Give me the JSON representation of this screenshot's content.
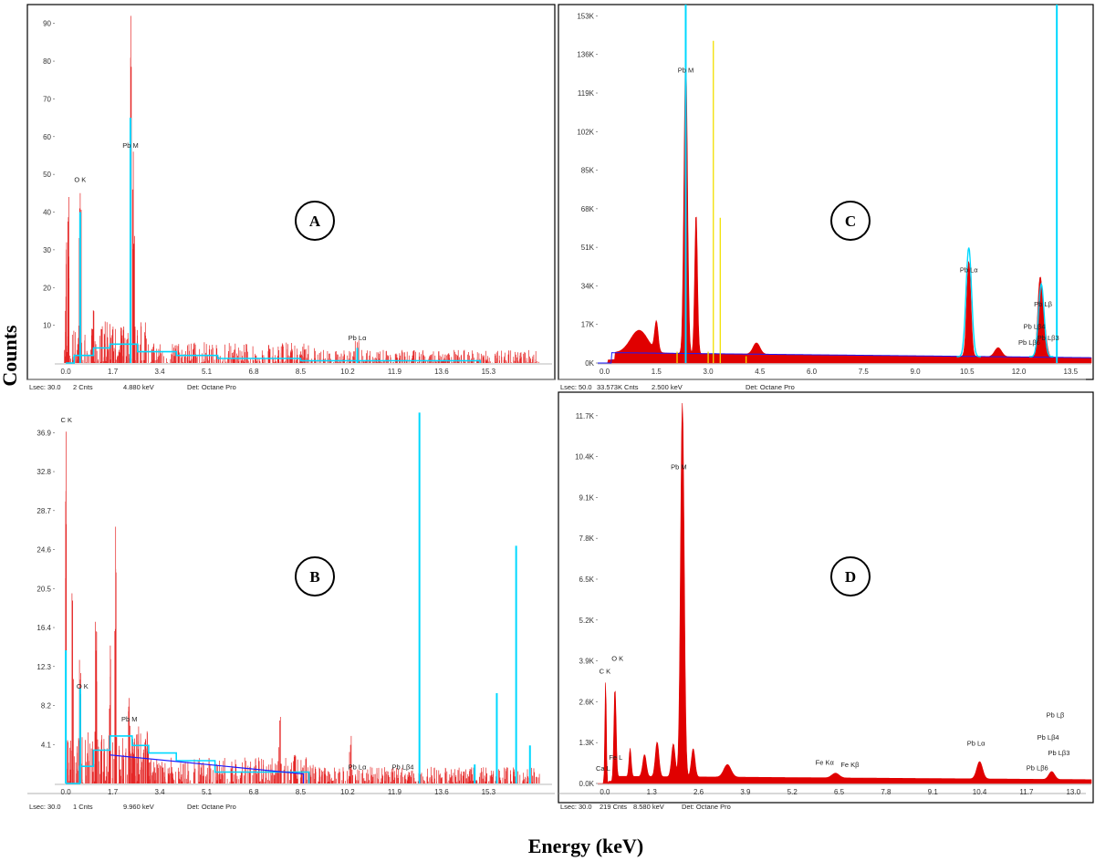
{
  "labels": {
    "y_axis": "Counts",
    "x_axis": "Energy (keV)"
  },
  "colors": {
    "spectrum": "#e00000",
    "overlay": "#00d8ff",
    "background": "#1a1aff",
    "marker": "#f2e000"
  },
  "chart_data": [
    {
      "id": "A",
      "type": "area",
      "xlabel": "",
      "ylabel": "",
      "xlim": [
        -0.4,
        17.6
      ],
      "ylim": [
        0,
        95
      ],
      "x_ticks": [
        "0.0",
        "1.7",
        "3.4",
        "5.1",
        "6.8",
        "8.5",
        "10.2",
        "11.9",
        "13.6",
        "15.3"
      ],
      "x_tick_values": [
        0,
        1.7,
        3.4,
        5.1,
        6.8,
        8.5,
        10.2,
        11.9,
        13.6,
        15.3
      ],
      "y_ticks": [
        "10",
        "20",
        "30",
        "40",
        "50",
        "60",
        "70",
        "80",
        "90"
      ],
      "y_tick_values": [
        10,
        20,
        30,
        40,
        50,
        60,
        70,
        80,
        90
      ],
      "peaks": [
        {
          "x": 0.0,
          "y": 32,
          "w": 0.03
        },
        {
          "x": 0.1,
          "y": 44,
          "w": 0.04
        },
        {
          "x": 0.52,
          "y": 45,
          "w": 0.04
        },
        {
          "x": 1.0,
          "y": 14,
          "w": 0.03
        },
        {
          "x": 1.4,
          "y": 11,
          "w": 0.03
        },
        {
          "x": 2.34,
          "y": 92,
          "w": 0.035
        },
        {
          "x": 2.45,
          "y": 56,
          "w": 0.04
        },
        {
          "x": 10.55,
          "y": 6,
          "w": 0.08
        },
        {
          "x": 12.6,
          "y": 3,
          "w": 0.08
        }
      ],
      "noise_level": 5,
      "overlay_peaks": [
        {
          "x": 0.52,
          "y": 40
        },
        {
          "x": 2.34,
          "y": 65
        },
        {
          "x": 10.55,
          "y": 4
        }
      ],
      "annotations": [
        {
          "text": "O  K",
          "x": 0.52,
          "y": 48
        },
        {
          "text": "Pb M",
          "x": 2.34,
          "y": 57
        },
        {
          "text": "Pb Lα",
          "x": 10.55,
          "y": 6
        }
      ],
      "status": {
        "lsec": "Lsec: 30.0",
        "cnts": "2 Cnts",
        "kev": "4.880 keV",
        "det": "Det: Octane Pro"
      }
    },
    {
      "id": "B",
      "type": "area",
      "xlabel": "",
      "ylabel": "",
      "xlim": [
        -0.4,
        17.6
      ],
      "ylim": [
        0,
        40
      ],
      "x_ticks": [
        "0.0",
        "1.7",
        "3.4",
        "5.1",
        "6.8",
        "8.5",
        "10.2",
        "11.9",
        "13.6",
        "15.3"
      ],
      "x_tick_values": [
        0,
        1.7,
        3.4,
        5.1,
        6.8,
        8.5,
        10.2,
        11.9,
        13.6,
        15.3
      ],
      "y_ticks": [
        "4.1",
        "8.2",
        "12.3",
        "16.4",
        "20.5",
        "24.6",
        "28.7",
        "32.8",
        "36.9"
      ],
      "y_tick_values": [
        4.1,
        8.2,
        12.3,
        16.4,
        20.5,
        24.6,
        28.7,
        32.8,
        36.9
      ],
      "peaks": [
        {
          "x": 0.02,
          "y": 37,
          "w": 0.03
        },
        {
          "x": 0.25,
          "y": 20,
          "w": 0.03
        },
        {
          "x": 0.52,
          "y": 13,
          "w": 0.03
        },
        {
          "x": 1.1,
          "y": 17,
          "w": 0.03
        },
        {
          "x": 1.6,
          "y": 14.5,
          "w": 0.04
        },
        {
          "x": 1.8,
          "y": 27,
          "w": 0.03
        },
        {
          "x": 2.3,
          "y": 9,
          "w": 0.04
        },
        {
          "x": 2.6,
          "y": 6,
          "w": 0.04
        },
        {
          "x": 7.75,
          "y": 7,
          "w": 0.04
        },
        {
          "x": 8.3,
          "y": 3,
          "w": 0.04
        },
        {
          "x": 10.3,
          "y": 5,
          "w": 0.04
        }
      ],
      "noise_level": 2.5,
      "overlay_peaks": [
        {
          "x": 0.0,
          "y": 14
        },
        {
          "x": 0.52,
          "y": 10
        },
        {
          "x": 12.8,
          "y": 39
        },
        {
          "x": 15.6,
          "y": 9.5
        },
        {
          "x": 16.3,
          "y": 25
        },
        {
          "x": 16.8,
          "y": 4
        },
        {
          "x": 14.8,
          "y": 2
        }
      ],
      "annotations": [
        {
          "text": "C  K",
          "x": 0.02,
          "y": 38
        },
        {
          "text": "O  K",
          "x": 0.6,
          "y": 10
        },
        {
          "text": "Pb M",
          "x": 2.3,
          "y": 6.5
        },
        {
          "text": "Pb Lα",
          "x": 10.55,
          "y": 1.5
        },
        {
          "text": "Pb Lβ4",
          "x": 12.2,
          "y": 1.5
        }
      ],
      "status": {
        "lsec": "Lsec: 30.0",
        "cnts": "1 Cnts",
        "kev": "9.960 keV",
        "det": "Det: Octane Pro"
      }
    },
    {
      "id": "C",
      "type": "area",
      "xlabel": "",
      "ylabel": "",
      "xlim": [
        -0.2,
        14.1
      ],
      "ylim": [
        0,
        158000
      ],
      "x_ticks": [
        "0.0",
        "1.5",
        "3.0",
        "4.5",
        "6.0",
        "7.5",
        "9.0",
        "10.5",
        "12.0",
        "13.5"
      ],
      "x_tick_values": [
        0,
        1.5,
        3,
        4.5,
        6,
        7.5,
        9,
        10.5,
        12,
        13.5
      ],
      "y_ticks": [
        "0K",
        "17K",
        "34K",
        "51K",
        "68K",
        "85K",
        "102K",
        "119K",
        "136K",
        "153K"
      ],
      "y_tick_values": [
        0,
        17000,
        34000,
        51000,
        68000,
        85000,
        102000,
        119000,
        136000,
        153000
      ],
      "peaks": [
        {
          "x": 1.0,
          "y": 10000,
          "w": 0.25
        },
        {
          "x": 1.5,
          "y": 13000,
          "w": 0.05
        },
        {
          "x": 2.35,
          "y": 132000,
          "w": 0.05
        },
        {
          "x": 2.65,
          "y": 62000,
          "w": 0.04
        },
        {
          "x": 4.4,
          "y": 5000,
          "w": 0.1
        },
        {
          "x": 10.55,
          "y": 42000,
          "w": 0.06
        },
        {
          "x": 12.6,
          "y": 26000,
          "w": 0.06
        },
        {
          "x": 12.7,
          "y": 18000,
          "w": 0.08
        },
        {
          "x": 11.4,
          "y": 4000,
          "w": 0.1
        }
      ],
      "background_level": 4000,
      "overlay_peaks": [
        {
          "x": 2.35,
          "y": 158000
        },
        {
          "x": 10.55,
          "y": 48000
        },
        {
          "x": 12.65,
          "y": 32000
        },
        {
          "x": 13.1,
          "y": 158000
        }
      ],
      "markers": [
        {
          "x": 3.15,
          "y": 142000
        },
        {
          "x": 3.35,
          "y": 64000
        },
        {
          "x": 2.1,
          "y": 5000
        },
        {
          "x": 3.0,
          "y": 5000
        },
        {
          "x": 4.1,
          "y": 3000
        }
      ],
      "annotations": [
        {
          "text": "Pb M",
          "x": 2.35,
          "y": 128000
        },
        {
          "text": "Pb Lα",
          "x": 10.55,
          "y": 40000
        },
        {
          "text": "Pb Lβ",
          "x": 12.7,
          "y": 25000
        },
        {
          "text": "Pb Lβ4",
          "x": 12.45,
          "y": 15000
        },
        {
          "text": "Pb Lβ6",
          "x": 12.3,
          "y": 8000
        },
        {
          "text": "Pb Lβ3",
          "x": 12.85,
          "y": 10000
        }
      ],
      "status": {
        "lsec": "Lsec: 50.0",
        "cnts": "33.573K Cnts",
        "kev": "2.500 keV",
        "det": "Det: Octane Pro"
      }
    },
    {
      "id": "D",
      "type": "area",
      "xlabel": "",
      "ylabel": "",
      "xlim": [
        -0.2,
        13.5
      ],
      "ylim": [
        0,
        12100
      ],
      "x_ticks": [
        "0.0",
        "1.3",
        "2.6",
        "3.9",
        "5.2",
        "6.5",
        "7.8",
        "9.1",
        "10.4",
        "11.7",
        "13.0"
      ],
      "x_tick_values": [
        0,
        1.3,
        2.6,
        3.9,
        5.2,
        6.5,
        7.8,
        9.1,
        10.4,
        11.7,
        13
      ],
      "y_ticks": [
        "0.0K",
        "1.3K",
        "2.6K",
        "3.9K",
        "5.2K",
        "6.5K",
        "7.8K",
        "9.1K",
        "10.4K",
        "11.7K"
      ],
      "y_tick_values": [
        0,
        1300,
        2600,
        3900,
        5200,
        6500,
        7800,
        9100,
        10400,
        11700
      ],
      "peaks": [
        {
          "x": 0.02,
          "y": 3300,
          "w": 0.02
        },
        {
          "x": 0.28,
          "y": 3000,
          "w": 0.03
        },
        {
          "x": 0.7,
          "y": 900,
          "w": 0.03
        },
        {
          "x": 1.1,
          "y": 700,
          "w": 0.05
        },
        {
          "x": 1.45,
          "y": 1100,
          "w": 0.05
        },
        {
          "x": 1.9,
          "y": 1050,
          "w": 0.05
        },
        {
          "x": 2.15,
          "y": 12000,
          "w": 0.05
        },
        {
          "x": 2.45,
          "y": 900,
          "w": 0.05
        },
        {
          "x": 3.4,
          "y": 400,
          "w": 0.1
        },
        {
          "x": 6.4,
          "y": 150,
          "w": 0.1
        },
        {
          "x": 10.4,
          "y": 550,
          "w": 0.08
        },
        {
          "x": 12.4,
          "y": 250,
          "w": 0.08
        }
      ],
      "background_level": 200,
      "annotations": [
        {
          "text": "C  K",
          "x": 0.0,
          "y": 3500
        },
        {
          "text": "O  K",
          "x": 0.35,
          "y": 3900
        },
        {
          "text": "Ca L",
          "x": -0.05,
          "y": 400
        },
        {
          "text": "Fe L",
          "x": 0.3,
          "y": 750
        },
        {
          "text": "Pb M",
          "x": 2.05,
          "y": 10000
        },
        {
          "text": "Fe Kα",
          "x": 6.1,
          "y": 600
        },
        {
          "text": "Fe Kβ",
          "x": 6.8,
          "y": 520
        },
        {
          "text": "Pb Lα",
          "x": 10.3,
          "y": 1200
        },
        {
          "text": "Pb Lβ",
          "x": 12.5,
          "y": 2100
        },
        {
          "text": "Pb Lβ4",
          "x": 12.3,
          "y": 1400
        },
        {
          "text": "Pb Lβ3",
          "x": 12.6,
          "y": 900
        },
        {
          "text": "Pb Lβ6",
          "x": 12.0,
          "y": 420
        }
      ],
      "status": {
        "lsec": "Lsec: 30.0",
        "cnts": "219 Cnts",
        "kev": "8.580 keV",
        "det": "Det: Octane Pro"
      }
    }
  ]
}
